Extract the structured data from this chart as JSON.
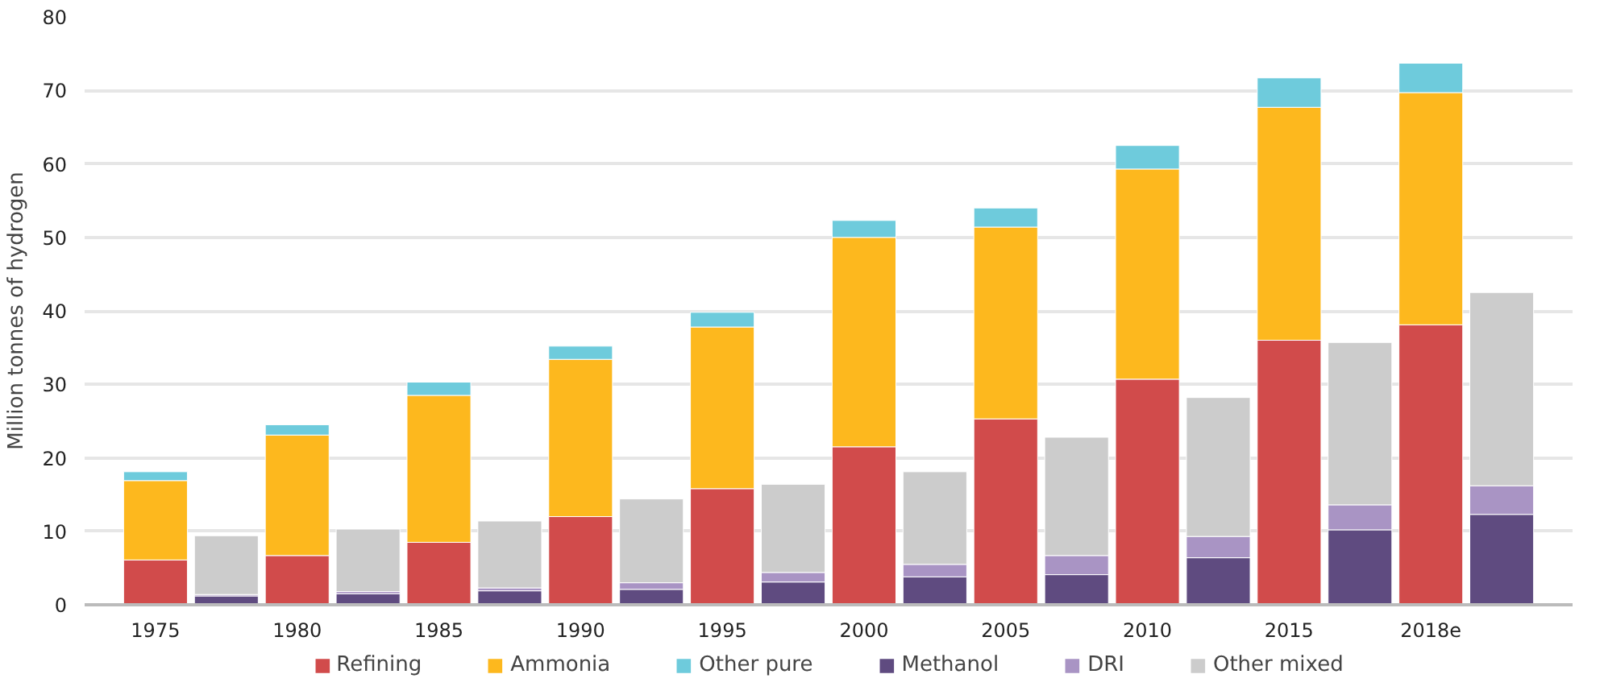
{
  "chart_data": {
    "type": "bar",
    "stacked": true,
    "ylabel": "Million tonnes of hydrogen",
    "categories": [
      "1975",
      null,
      "1980",
      null,
      "1985",
      null,
      "1990",
      null,
      "1995",
      null,
      "2000",
      null,
      "2005",
      null,
      "2010",
      null,
      "2015",
      null,
      "2018e",
      null
    ],
    "ylim": [
      0,
      80
    ],
    "yticks": [
      0,
      10,
      20,
      30,
      40,
      50,
      60,
      70,
      80
    ],
    "grid": "y",
    "legend": "bottom",
    "series": [
      {
        "name": "Refining",
        "color": "#d14b4b",
        "values": [
          6.1,
          null,
          6.7,
          null,
          8.5,
          null,
          12.0,
          null,
          15.8,
          null,
          21.5,
          null,
          25.3,
          null,
          30.7,
          null,
          36.0,
          null,
          38.1,
          null
        ]
      },
      {
        "name": "Ammonia",
        "color": "#fdb81e",
        "values": [
          10.8,
          null,
          16.4,
          null,
          20.0,
          null,
          21.4,
          null,
          22.0,
          null,
          28.5,
          null,
          26.1,
          null,
          28.6,
          null,
          31.7,
          null,
          31.6,
          null
        ]
      },
      {
        "name": "Other pure",
        "color": "#6ecbdc",
        "values": [
          1.2,
          null,
          1.4,
          null,
          1.8,
          null,
          1.8,
          null,
          2.0,
          null,
          2.3,
          null,
          2.6,
          null,
          3.2,
          null,
          4.0,
          null,
          4.0,
          null
        ]
      },
      {
        "name": "Methanol",
        "color": "#5f4b80",
        "values": [
          null,
          1.2,
          null,
          1.5,
          null,
          1.9,
          null,
          2.1,
          null,
          3.1,
          null,
          3.8,
          null,
          4.1,
          null,
          6.4,
          null,
          10.2,
          null,
          12.3
        ]
      },
      {
        "name": "DRI",
        "color": "#a994c4",
        "values": [
          null,
          0.2,
          null,
          0.3,
          null,
          0.4,
          null,
          0.9,
          null,
          1.3,
          null,
          1.7,
          null,
          2.6,
          null,
          2.9,
          null,
          3.4,
          null,
          3.9
        ]
      },
      {
        "name": "Other mixed",
        "color": "#cccccc",
        "values": [
          null,
          8.0,
          null,
          8.5,
          null,
          9.1,
          null,
          11.4,
          null,
          12.0,
          null,
          12.6,
          null,
          16.1,
          null,
          18.9,
          null,
          22.1,
          null,
          26.3
        ]
      }
    ]
  }
}
